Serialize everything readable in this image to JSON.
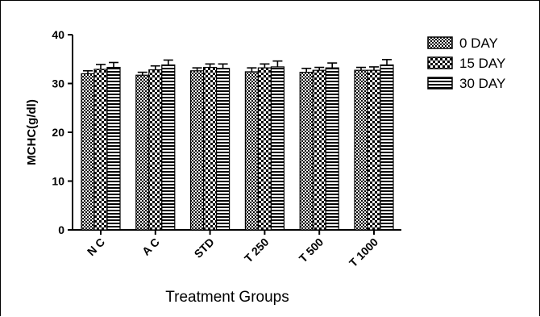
{
  "chart_data": {
    "type": "bar",
    "title": "",
    "xlabel": "Treatment Groups",
    "ylabel": "MCHC(g/dl)",
    "ylim": [
      0,
      40
    ],
    "yticks": [
      "0",
      "10",
      "20",
      "30",
      "40"
    ],
    "categories": [
      "N C",
      "A C",
      "STD",
      "T 250",
      "T 500",
      "T 1000"
    ],
    "series": [
      {
        "name": "0 DAY",
        "pattern": "checker-fine",
        "values": [
          32.0,
          31.7,
          32.6,
          32.4,
          32.3,
          32.7
        ],
        "errors": [
          0.6,
          0.6,
          0.6,
          0.8,
          0.8,
          0.6
        ]
      },
      {
        "name": "15 DAY",
        "pattern": "checker-coarse",
        "values": [
          32.9,
          32.8,
          33.3,
          33.2,
          32.7,
          32.7
        ],
        "errors": [
          1.0,
          0.8,
          0.7,
          0.8,
          0.6,
          0.7
        ]
      },
      {
        "name": "30 DAY",
        "pattern": "horizontal-stripes",
        "values": [
          33.3,
          33.8,
          33.1,
          33.4,
          33.2,
          33.8
        ],
        "errors": [
          1.0,
          1.0,
          0.9,
          1.2,
          1.0,
          1.1
        ]
      }
    ],
    "grid": false,
    "legend_position": "top-right"
  }
}
